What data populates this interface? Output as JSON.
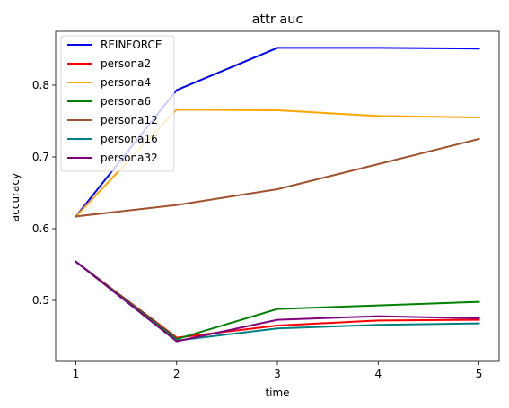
{
  "chart_data": {
    "type": "line",
    "title": "attr auc",
    "xlabel": "time",
    "ylabel": "accuracy",
    "x": [
      1,
      2,
      3,
      4,
      5
    ],
    "xlim": [
      0.8,
      5.2
    ],
    "ylim": [
      0.415,
      0.875
    ],
    "xticks": [
      "1",
      "2",
      "3",
      "4",
      "5"
    ],
    "yticks": [
      "0.5",
      "0.6",
      "0.7",
      "0.8"
    ],
    "ytick_values": [
      0.5,
      0.6,
      0.7,
      0.8
    ],
    "grid": false,
    "legend_position": "top-left",
    "series": [
      {
        "name": "REINFORCE",
        "color": "#0000ff",
        "values": [
          0.617,
          0.793,
          0.852,
          0.852,
          0.851
        ]
      },
      {
        "name": "persona2",
        "color": "#ff0000",
        "values": [
          0.554,
          0.448,
          0.465,
          0.472,
          0.473
        ]
      },
      {
        "name": "persona4",
        "color": "#ffa500",
        "values": [
          0.617,
          0.766,
          0.765,
          0.757,
          0.755
        ]
      },
      {
        "name": "persona6",
        "color": "#008000",
        "values": [
          0.554,
          0.446,
          0.488,
          0.493,
          0.498
        ]
      },
      {
        "name": "persona12",
        "color": "#a0522d",
        "values": [
          0.617,
          0.633,
          0.655,
          0.69,
          0.725
        ]
      },
      {
        "name": "persona16",
        "color": "#008080",
        "values": [
          0.554,
          0.444,
          0.461,
          0.466,
          0.468
        ]
      },
      {
        "name": "persona32",
        "color": "#800080",
        "values": [
          0.554,
          0.443,
          0.473,
          0.478,
          0.475
        ]
      }
    ]
  }
}
